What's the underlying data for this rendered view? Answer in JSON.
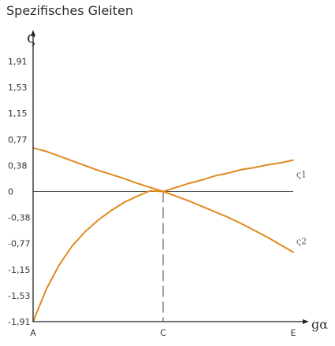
{
  "title": "Spezifisches Gleiten",
  "chart_data": {
    "type": "line",
    "ylabel": "ς",
    "xlabel": "gα",
    "yticks": [
      "1,91",
      "1,53",
      "1,15",
      "0,77",
      "0,38",
      "0",
      "-0,38",
      "-0,77",
      "-1,15",
      "-1,53",
      "-1,91"
    ],
    "ylim": [
      -1.91,
      1.91
    ],
    "xticks": [
      "A",
      "C",
      "E"
    ],
    "x_positions": [
      0,
      0.5,
      1
    ],
    "series": [
      {
        "name": "ς1",
        "x": [
          0,
          0.05,
          0.1,
          0.15,
          0.2,
          0.25,
          0.3,
          0.35,
          0.4,
          0.45,
          0.5,
          0.55,
          0.6,
          0.65,
          0.7,
          0.75,
          0.8,
          0.85,
          0.9,
          0.95,
          1
        ],
        "y": [
          -1.91,
          -1.44,
          -1.08,
          -0.8,
          -0.59,
          -0.42,
          -0.28,
          -0.16,
          -0.07,
          0.01,
          0.0,
          0.06,
          0.12,
          0.17,
          0.23,
          0.27,
          0.32,
          0.35,
          0.39,
          0.42,
          0.46
        ]
      },
      {
        "name": "ς2",
        "x": [
          0,
          0.05,
          0.1,
          0.15,
          0.2,
          0.25,
          0.3,
          0.35,
          0.4,
          0.45,
          0.5,
          0.55,
          0.6,
          0.65,
          0.7,
          0.75,
          0.8,
          0.85,
          0.9,
          0.95,
          1
        ],
        "y": [
          0.64,
          0.59,
          0.52,
          0.45,
          0.38,
          0.31,
          0.25,
          0.19,
          0.12,
          0.06,
          0.0,
          -0.07,
          -0.14,
          -0.22,
          -0.3,
          -0.38,
          -0.47,
          -0.57,
          -0.67,
          -0.78,
          -0.89
        ]
      }
    ],
    "series_colors": [
      "#e08a1e",
      "#e08a1e"
    ],
    "grid": false,
    "reference_lines": [
      {
        "axis": "y",
        "value": 0,
        "style": "solid"
      },
      {
        "axis": "x",
        "value": 0.5,
        "style": "dashed"
      }
    ]
  }
}
